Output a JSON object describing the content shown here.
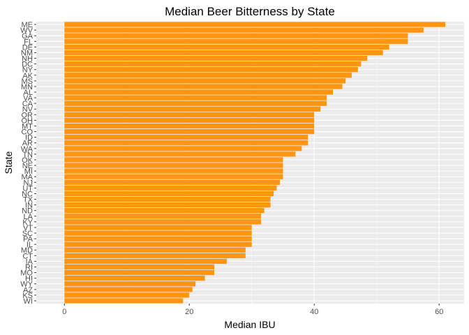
{
  "chart_data": {
    "type": "bar",
    "orientation": "horizontal",
    "title": "Median Beer Bitterness by State",
    "xlabel": "Median IBU",
    "ylabel": "State",
    "xlim": [
      -4.5,
      64
    ],
    "xticks": [
      0,
      20,
      40,
      60
    ],
    "grid": true,
    "legend": "none",
    "bar_color": "#FF9510",
    "panel_color": "#EBEBEB",
    "grid_color": "#FFFFFF",
    "categories": [
      "ME",
      "WV",
      "GA",
      "FL",
      "DE",
      "NM",
      "NH",
      "DC",
      "NY",
      "AK",
      "MS",
      "MN",
      "AL",
      "VA",
      "CA",
      "NV",
      "OR",
      "OH",
      "MT",
      "CO",
      "ID",
      "AR",
      "WA",
      "TN",
      "OK",
      "NE",
      "MI",
      "MA",
      "NJ",
      "UT",
      "NC",
      "TX",
      "IN",
      "ND",
      "LA",
      "KY",
      "VT",
      "SC",
      "PA",
      "IL",
      "MD",
      "CT",
      "IA",
      "RI",
      "MO",
      "HI",
      "WY",
      "AZ",
      "KS",
      "WI"
    ],
    "values": [
      61,
      57.5,
      55,
      55,
      52,
      51,
      48.5,
      47.5,
      47,
      46,
      45,
      44.5,
      43,
      42,
      42,
      41,
      40,
      40,
      40,
      40,
      39,
      39,
      38,
      37,
      35,
      35,
      35,
      35,
      34.5,
      34,
      33.5,
      33,
      33,
      32,
      31.5,
      31.5,
      30,
      30,
      30,
      30,
      29,
      29,
      26,
      24,
      24,
      22.5,
      21,
      20.5,
      20,
      19
    ]
  }
}
